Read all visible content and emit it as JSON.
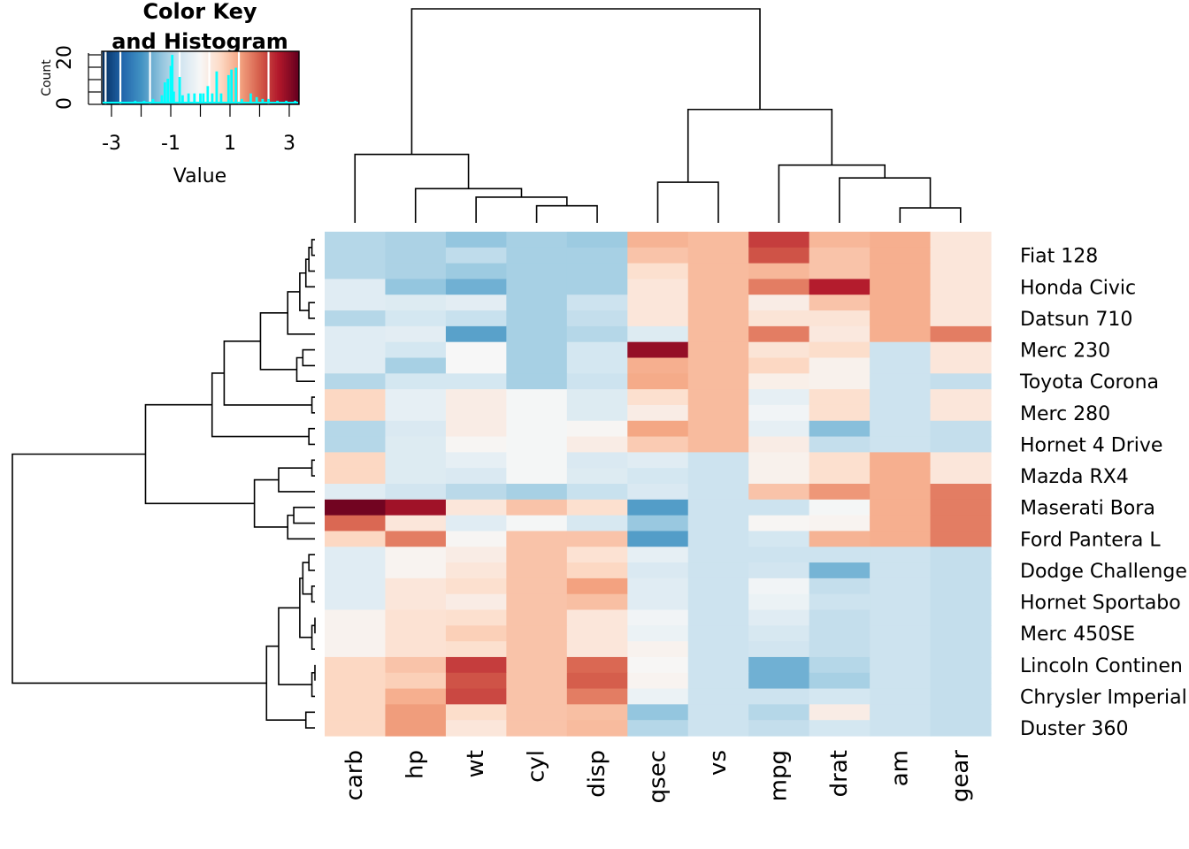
{
  "chart_data": {
    "type": "heatmap",
    "title": "",
    "color_key": {
      "title_line1": "Color Key",
      "title_line2": "and Histogram",
      "xlabel": "Value",
      "ylabel": "Count",
      "x_ticks": [
        "-3",
        "-1",
        "1",
        "3"
      ],
      "x_tick_values": [
        -3,
        -2,
        -1,
        0,
        1,
        2,
        3
      ],
      "x_tick_label_values": [
        -3,
        -1,
        1,
        3
      ],
      "y_ticks": [
        "0",
        "20"
      ],
      "range": [
        -3.3,
        3.3
      ],
      "palette": [
        "#053061",
        "#2166AC",
        "#4393C3",
        "#92C5DE",
        "#D1E5F0",
        "#F7F7F7",
        "#FDDBC7",
        "#F4A582",
        "#D6604D",
        "#B2182B",
        "#67001F"
      ],
      "histogram_color": "#00FFFF",
      "density_line_color": "#00FFFF",
      "hist_breaks_separators": [
        -2.7,
        -1.7,
        -0.7,
        0.3,
        1.3,
        2.3
      ],
      "histogram_counts_approx": [
        {
          "x": -2.2,
          "c": 1
        },
        {
          "x": -1.9,
          "c": 1
        },
        {
          "x": -1.6,
          "c": 2
        },
        {
          "x": -1.3,
          "c": 4
        },
        {
          "x": -1.2,
          "c": 11
        },
        {
          "x": -1.1,
          "c": 13
        },
        {
          "x": -1.0,
          "c": 20
        },
        {
          "x": -0.95,
          "c": 26
        },
        {
          "x": -0.9,
          "c": 6
        },
        {
          "x": -0.7,
          "c": 14
        },
        {
          "x": -0.6,
          "c": 4
        },
        {
          "x": -0.4,
          "c": 5
        },
        {
          "x": -0.2,
          "c": 5
        },
        {
          "x": 0.0,
          "c": 5
        },
        {
          "x": 0.1,
          "c": 5
        },
        {
          "x": 0.25,
          "c": 9
        },
        {
          "x": 0.4,
          "c": 5
        },
        {
          "x": 0.55,
          "c": 17
        },
        {
          "x": 0.7,
          "c": 5
        },
        {
          "x": 0.95,
          "c": 15
        },
        {
          "x": 1.05,
          "c": 18
        },
        {
          "x": 1.2,
          "c": 19
        },
        {
          "x": 1.4,
          "c": 2
        },
        {
          "x": 1.7,
          "c": 5
        },
        {
          "x": 1.9,
          "c": 3
        },
        {
          "x": 2.1,
          "c": 2
        },
        {
          "x": 2.3,
          "c": 2
        },
        {
          "x": 2.6,
          "c": 1
        },
        {
          "x": 2.9,
          "c": 1
        },
        {
          "x": 3.2,
          "c": 1
        }
      ]
    },
    "columns": [
      "carb",
      "hp",
      "wt",
      "cyl",
      "disp",
      "qsec",
      "vs",
      "mpg",
      "drat",
      "am",
      "gear"
    ],
    "row_labels": [
      "",
      "Fiat 128",
      "",
      "Honda Civic",
      "",
      "Datsun 710",
      "",
      "Merc 230",
      "",
      "Toyota Corona",
      "",
      "Merc 280",
      "",
      "Hornet 4 Drive",
      "",
      "Mazda RX4",
      "",
      "Maserati Bora",
      "",
      "Ford Pantera L",
      "",
      "Dodge Challenge",
      "",
      "Hornet Sportabo",
      "",
      "Merc 450SE",
      "",
      "Lincoln Continen",
      "",
      "Chrysler Imperial",
      "",
      "Duster 360"
    ],
    "values": [
      [
        -0.95,
        -1.05,
        -1.3,
        -1.1,
        -1.2,
        1.15,
        1.05,
        2.3,
        1.1,
        1.2,
        0.4
      ],
      [
        -0.95,
        -1.05,
        -0.85,
        -1.1,
        -1.1,
        0.95,
        1.05,
        2.1,
        0.95,
        1.2,
        0.4
      ],
      [
        -0.95,
        -1.05,
        -1.2,
        -1.1,
        -1.1,
        0.55,
        1.05,
        1.1,
        0.95,
        1.2,
        0.4
      ],
      [
        -0.4,
        -1.3,
        -1.6,
        -1.1,
        -1.1,
        0.4,
        1.05,
        1.7,
        2.6,
        1.2,
        0.4
      ],
      [
        -0.4,
        -0.45,
        -0.35,
        -1.1,
        -0.7,
        0.4,
        1.05,
        0.25,
        0.95,
        1.2,
        0.4
      ],
      [
        -0.95,
        -0.6,
        -0.75,
        -1.1,
        -0.8,
        0.4,
        1.05,
        0.45,
        0.45,
        1.2,
        0.4
      ],
      [
        -0.4,
        -0.35,
        -1.8,
        -1.1,
        -0.95,
        -0.45,
        1.05,
        1.7,
        0.35,
        1.2,
        1.7
      ],
      [
        -0.4,
        -0.6,
        0.0,
        -1.1,
        -0.6,
        2.9,
        1.05,
        0.45,
        0.6,
        -0.7,
        0.4
      ],
      [
        -0.4,
        -1.1,
        0.0,
        -1.1,
        -0.6,
        1.2,
        1.05,
        0.7,
        0.15,
        -0.7,
        0.4
      ],
      [
        -0.95,
        -0.6,
        -0.6,
        -1.1,
        -0.7,
        1.25,
        1.05,
        0.2,
        0.15,
        -0.7,
        -0.8
      ],
      [
        0.7,
        -0.3,
        0.25,
        -0.05,
        -0.45,
        0.55,
        1.05,
        -0.3,
        0.55,
        -0.7,
        0.4
      ],
      [
        0.7,
        -0.3,
        0.25,
        -0.05,
        -0.45,
        0.25,
        1.05,
        -0.1,
        0.55,
        -0.7,
        0.4
      ],
      [
        -0.95,
        -0.5,
        0.25,
        -0.05,
        0.05,
        1.3,
        1.05,
        -0.3,
        -1.4,
        -0.7,
        -0.8
      ],
      [
        -0.95,
        -0.45,
        0.05,
        -0.05,
        0.25,
        0.85,
        1.05,
        0.25,
        -0.8,
        -0.7,
        -0.8
      ],
      [
        0.7,
        -0.45,
        -0.3,
        -0.05,
        -0.5,
        -0.4,
        -0.7,
        0.15,
        0.55,
        1.2,
        0.4
      ],
      [
        0.7,
        -0.45,
        -0.5,
        -0.05,
        -0.45,
        -0.6,
        -0.7,
        0.15,
        0.55,
        1.2,
        0.4
      ],
      [
        -0.4,
        -0.65,
        -0.9,
        -1.1,
        -0.75,
        -0.5,
        -0.7,
        0.95,
        1.45,
        1.2,
        1.7
      ],
      [
        3.2,
        2.8,
        0.4,
        0.95,
        0.55,
        -1.85,
        -0.7,
        -0.7,
        -0.05,
        1.2,
        1.7
      ],
      [
        1.9,
        0.4,
        -0.4,
        -0.05,
        -0.55,
        -1.25,
        -0.7,
        0.05,
        0.1,
        1.2,
        1.7
      ],
      [
        0.7,
        1.7,
        0.05,
        0.95,
        0.95,
        -1.85,
        -0.7,
        -0.6,
        1.15,
        1.2,
        1.7
      ],
      [
        -0.4,
        0.1,
        0.25,
        0.95,
        0.5,
        -0.3,
        -0.7,
        -0.7,
        -0.7,
        -0.7,
        -0.8
      ],
      [
        -0.4,
        0.1,
        0.4,
        0.95,
        0.7,
        -0.5,
        -0.7,
        -0.65,
        -1.55,
        -0.7,
        -0.8
      ],
      [
        -0.4,
        0.4,
        0.55,
        0.95,
        1.35,
        -0.4,
        -0.7,
        -0.1,
        -0.8,
        -0.7,
        -0.8
      ],
      [
        -0.4,
        0.4,
        0.25,
        0.95,
        1.0,
        -0.4,
        -0.7,
        -0.2,
        -0.7,
        -0.7,
        -0.8
      ],
      [
        0.12,
        0.5,
        0.55,
        0.95,
        0.4,
        -0.1,
        -0.7,
        -0.4,
        -0.8,
        -0.7,
        -0.8
      ],
      [
        0.12,
        0.5,
        0.8,
        0.95,
        0.4,
        -0.2,
        -0.7,
        -0.55,
        -0.8,
        -0.7,
        -0.8
      ],
      [
        0.12,
        0.5,
        0.55,
        0.95,
        0.4,
        0.12,
        -0.7,
        -0.65,
        -0.8,
        -0.7,
        -0.8
      ],
      [
        0.7,
        0.95,
        2.3,
        0.95,
        1.9,
        0.03,
        -0.7,
        -1.6,
        -0.95,
        -0.7,
        -0.8
      ],
      [
        0.7,
        0.8,
        2.1,
        0.95,
        2.0,
        0.1,
        -0.7,
        -1.6,
        -1.1,
        -0.7,
        -0.8
      ],
      [
        0.7,
        1.2,
        2.2,
        0.95,
        1.7,
        -0.2,
        -0.7,
        -0.7,
        -0.6,
        -0.7,
        -0.8
      ],
      [
        0.7,
        1.4,
        0.6,
        0.95,
        1.0,
        -1.3,
        -0.7,
        -0.95,
        0.25,
        -0.7,
        -0.8
      ],
      [
        0.7,
        1.4,
        0.4,
        0.95,
        1.05,
        -0.95,
        -0.7,
        -0.8,
        -0.6,
        -0.7,
        -0.8
      ]
    ],
    "column_dendrogram": {
      "merges": [
        {
          "a": "L3",
          "b": "L4",
          "height": 0.08
        },
        {
          "a": "L2",
          "b": "M0",
          "height": 0.12
        },
        {
          "a": "L1",
          "b": "M1",
          "height": 0.16
        },
        {
          "a": "L0",
          "b": "M2",
          "height": 0.32
        },
        {
          "a": "L5",
          "b": "L6",
          "height": 0.19
        },
        {
          "a": "L9",
          "b": "L10",
          "height": 0.07
        },
        {
          "a": "L8",
          "b": "M5",
          "height": 0.21
        },
        {
          "a": "L7",
          "b": "M6",
          "height": 0.27
        },
        {
          "a": "M4",
          "b": "M7",
          "height": 0.53
        },
        {
          "a": "M3",
          "b": "M8",
          "height": 1.0
        }
      ]
    },
    "row_dendrogram": {
      "merges": [
        {
          "a": "L0",
          "b": "L1",
          "height": 0.01
        },
        {
          "a": "M0",
          "b": "L2",
          "height": 0.02
        },
        {
          "a": "M1",
          "b": "L3",
          "height": 0.03
        },
        {
          "a": "L4",
          "b": "L5",
          "height": 0.02
        },
        {
          "a": "M2",
          "b": "M3",
          "height": 0.05
        },
        {
          "a": "M4",
          "b": "L6",
          "height": 0.09
        },
        {
          "a": "L7",
          "b": "L8",
          "height": 0.04
        },
        {
          "a": "M6",
          "b": "L9",
          "height": 0.06
        },
        {
          "a": "M5",
          "b": "M7",
          "height": 0.18
        },
        {
          "a": "L10",
          "b": "L11",
          "height": 0.01
        },
        {
          "a": "M8",
          "b": "M9",
          "height": 0.3
        },
        {
          "a": "L12",
          "b": "L13",
          "height": 0.02
        },
        {
          "a": "M10",
          "b": "M11",
          "height": 0.34
        },
        {
          "a": "L14",
          "b": "L15",
          "height": 0.01
        },
        {
          "a": "L16",
          "b": "M13",
          "height": 0.12
        },
        {
          "a": "L17",
          "b": "L18",
          "height": 0.07
        },
        {
          "a": "M15",
          "b": "L19",
          "height": 0.09
        },
        {
          "a": "M14",
          "b": "M16",
          "height": 0.2
        },
        {
          "a": "M12",
          "b": "M17",
          "height": 0.56
        },
        {
          "a": "L20",
          "b": "L21",
          "height": 0.02
        },
        {
          "a": "L22",
          "b": "L23",
          "height": 0.01
        },
        {
          "a": "M19",
          "b": "M20",
          "height": 0.04
        },
        {
          "a": "L24",
          "b": "L25",
          "height": 0.0
        },
        {
          "a": "M22",
          "b": "L26",
          "height": 0.01
        },
        {
          "a": "M21",
          "b": "M23",
          "height": 0.05
        },
        {
          "a": "L27",
          "b": "L28",
          "height": 0.0
        },
        {
          "a": "M25",
          "b": "L29",
          "height": 0.01
        },
        {
          "a": "M24",
          "b": "M26",
          "height": 0.12
        },
        {
          "a": "L30",
          "b": "L31",
          "height": 0.03
        },
        {
          "a": "M27",
          "b": "M28",
          "height": 0.16
        },
        {
          "a": "M18",
          "b": "M29",
          "height": 1.0
        }
      ]
    }
  }
}
